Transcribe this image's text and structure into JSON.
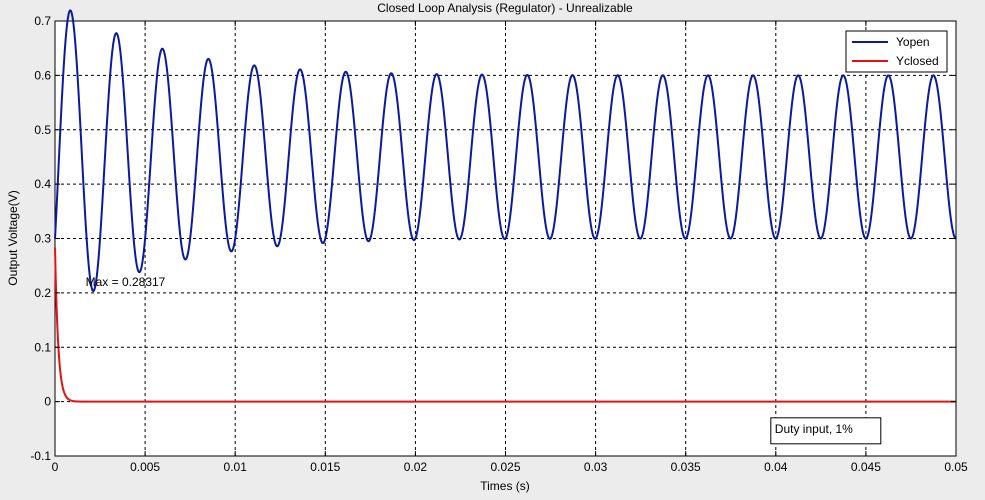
{
  "window": {
    "background": "#ececec"
  },
  "chart_data": {
    "type": "line",
    "title": "Closed Loop Analysis (Regulator) - Unrealizable",
    "xlabel": "Times (s)",
    "ylabel": "Output Voltage(V)",
    "xlim": [
      0,
      0.05
    ],
    "ylim": [
      -0.1,
      0.7
    ],
    "xticks": [
      0,
      0.005,
      0.01,
      0.015,
      0.02,
      0.025,
      0.03,
      0.035,
      0.04,
      0.045,
      0.05
    ],
    "xtick_labels": [
      "0",
      "0.005",
      "0.01",
      "0.015",
      "0.02",
      "0.025",
      "0.03",
      "0.035",
      "0.04",
      "0.045",
      "0.05"
    ],
    "yticks": [
      -0.1,
      0,
      0.1,
      0.2,
      0.3,
      0.4,
      0.5,
      0.6,
      0.7
    ],
    "ytick_labels": [
      "-0.1",
      "0",
      "0.1",
      "0.2",
      "0.3",
      "0.4",
      "0.5",
      "0.6",
      "0.7"
    ],
    "grid": true,
    "legend_position": "top-right",
    "series": [
      {
        "name": "Yopen",
        "color": "#0a1aa0",
        "model": {
          "final": 0.45,
          "start": 0.3,
          "amplitude": 0.245,
          "period": 0.0025,
          "decay_tau": 0.0095
        }
      },
      {
        "name": "Yclosed",
        "color": "#e8110f",
        "model": {
          "start": 0.28317,
          "decay_tau": 0.00018,
          "final": 0
        }
      }
    ],
    "annotations": [
      {
        "text": "Max = 0.28317",
        "x": 0.0017,
        "y": 0.22
      },
      {
        "text": "Duty input, 1%",
        "boxed": true,
        "x": 0.04,
        "y": -0.05
      }
    ]
  }
}
